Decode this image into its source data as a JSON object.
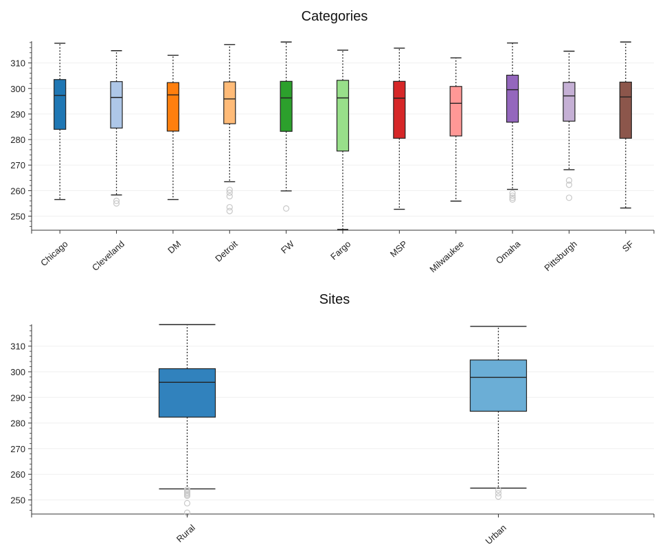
{
  "chart_data": [
    {
      "type": "boxplot",
      "title": "Categories",
      "ylim": [
        244.5,
        318.5
      ],
      "yticks": [
        250,
        260,
        270,
        280,
        290,
        300,
        310
      ],
      "categories": [
        "Chicago",
        "Cleveland",
        "DM",
        "Detroit",
        "FW",
        "Fargo",
        "MSP",
        "Milwaukee",
        "Omaha",
        "Pittsburgh",
        "SF"
      ],
      "boxes": [
        {
          "name": "Chicago",
          "color": "#1f77b4",
          "whislo": 256.5,
          "q1": 284.0,
          "med": 297.3,
          "q3": 303.5,
          "whishi": 317.7,
          "fliers": []
        },
        {
          "name": "Cleveland",
          "color": "#aec7e8",
          "whislo": 258.3,
          "q1": 284.5,
          "med": 296.5,
          "q3": 302.7,
          "whishi": 314.8,
          "fliers": [
            255.0,
            256.0
          ]
        },
        {
          "name": "DM",
          "color": "#ff7f0e",
          "whislo": 256.5,
          "q1": 283.3,
          "med": 297.5,
          "q3": 302.3,
          "whishi": 313.0,
          "fliers": []
        },
        {
          "name": "Detroit",
          "color": "#ffbb78",
          "whislo": 263.5,
          "q1": 286.2,
          "med": 295.9,
          "q3": 302.6,
          "whishi": 317.2,
          "fliers": [
            260.3,
            259.2,
            257.8,
            253.5,
            252.0
          ]
        },
        {
          "name": "FW",
          "color": "#2ca02c",
          "whislo": 259.9,
          "q1": 283.2,
          "med": 296.3,
          "q3": 302.8,
          "whishi": 318.2,
          "fliers": [
            253.0
          ]
        },
        {
          "name": "Fargo",
          "color": "#98df8a",
          "whislo": 244.8,
          "q1": 275.5,
          "med": 296.3,
          "q3": 303.2,
          "whishi": 315.0,
          "fliers": []
        },
        {
          "name": "MSP",
          "color": "#d62728",
          "whislo": 252.7,
          "q1": 280.5,
          "med": 296.2,
          "q3": 302.8,
          "whishi": 315.8,
          "fliers": []
        },
        {
          "name": "Milwaukee",
          "color": "#ff9896",
          "whislo": 255.9,
          "q1": 281.4,
          "med": 294.2,
          "q3": 300.8,
          "whishi": 312.0,
          "fliers": []
        },
        {
          "name": "Omaha",
          "color": "#9467bd",
          "whislo": 260.5,
          "q1": 286.8,
          "med": 299.5,
          "q3": 305.2,
          "whishi": 317.8,
          "fliers": [
            259.0,
            258.0,
            257.2,
            256.5
          ]
        },
        {
          "name": "Pittsburgh",
          "color": "#c5b0d5",
          "whislo": 268.2,
          "q1": 287.2,
          "med": 297.1,
          "q3": 302.4,
          "whishi": 314.6,
          "fliers": [
            264.0,
            262.3,
            257.2
          ]
        },
        {
          "name": "SF",
          "color": "#8c564b",
          "whislo": 253.2,
          "q1": 280.5,
          "med": 296.7,
          "q3": 302.5,
          "whishi": 318.2,
          "fliers": []
        }
      ],
      "grid": true,
      "xlabel": "",
      "ylabel": ""
    },
    {
      "type": "boxplot",
      "title": "Sites",
      "ylim": [
        244.5,
        318.5
      ],
      "yticks": [
        250,
        260,
        270,
        280,
        290,
        300,
        310
      ],
      "categories": [
        "Rural",
        "Urban"
      ],
      "boxes": [
        {
          "name": "Rural",
          "color": "#3182bd",
          "whislo": 254.3,
          "q1": 282.3,
          "med": 295.9,
          "q3": 301.2,
          "whishi": 318.4,
          "fliers": [
            254.0,
            253.5,
            253.0,
            252.6,
            252.1,
            251.6,
            248.7,
            245.0
          ]
        },
        {
          "name": "Urban",
          "color": "#6baed6",
          "whislo": 254.6,
          "q1": 284.6,
          "med": 297.8,
          "q3": 304.6,
          "whishi": 317.7,
          "fliers": [
            253.9,
            252.6,
            251.3
          ]
        }
      ],
      "grid": true,
      "xlabel": "",
      "ylabel": ""
    }
  ]
}
